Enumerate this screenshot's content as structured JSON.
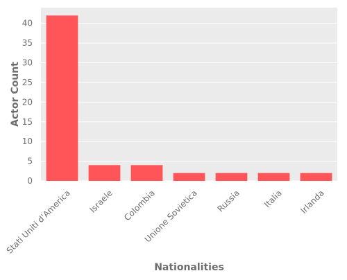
{
  "chart_data": {
    "type": "bar",
    "title": "",
    "xlabel": "Nationalities",
    "ylabel": "Actor Count",
    "categories": [
      "Stati Uniti d'America",
      "Israele",
      "Colombia",
      "Unione Sovietica",
      "Russia",
      "Italia",
      "Irlanda"
    ],
    "values": [
      42,
      4,
      4,
      2,
      2,
      2,
      2
    ],
    "ylim": [
      0,
      44
    ],
    "yticks": [
      0,
      5,
      10,
      15,
      20,
      25,
      30,
      35,
      40
    ],
    "grid": true,
    "colors": {
      "bar": "#ff5558",
      "plot_background": "#ebebeb",
      "grid": "#ffffff",
      "text": "#6d6d6d"
    }
  }
}
